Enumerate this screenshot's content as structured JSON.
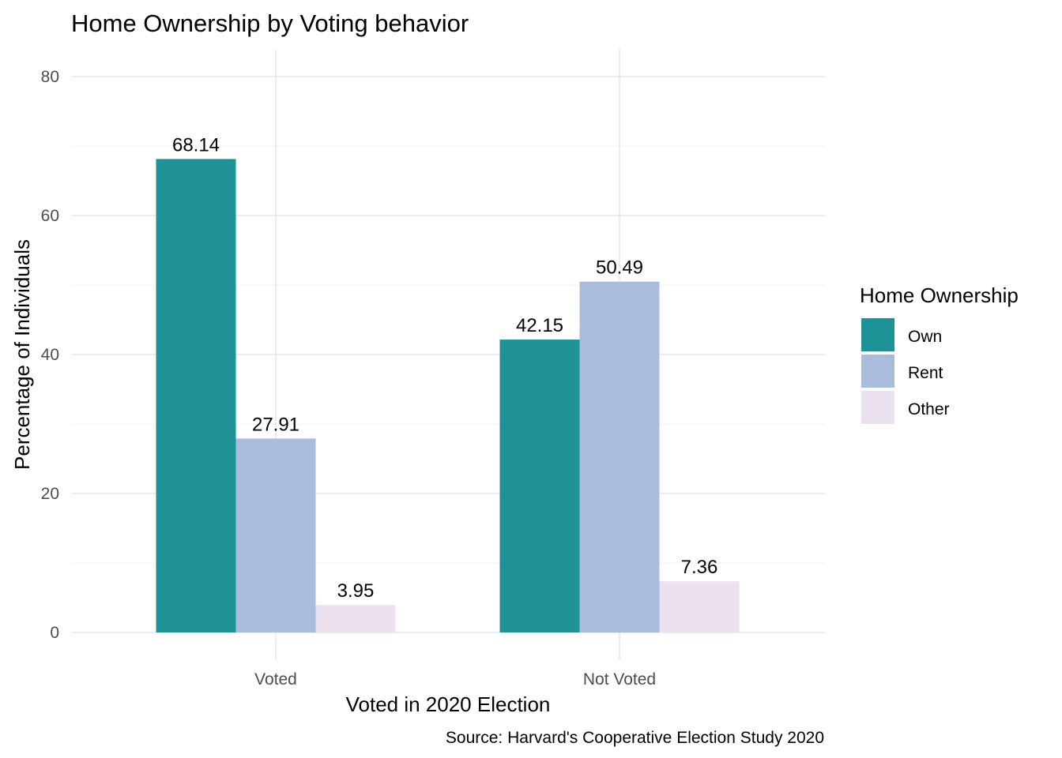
{
  "chart_data": {
    "type": "bar",
    "title": "Home Ownership by Voting behavior",
    "xlabel": "Voted in 2020 Election",
    "ylabel": "Percentage of Individuals",
    "caption": "Source: Harvard's Cooperative Election Study 2020",
    "categories": [
      "Voted",
      "Not Voted"
    ],
    "ylim": [
      0,
      80
    ],
    "yticks": [
      0,
      20,
      40,
      60,
      80
    ],
    "grid": true,
    "legend": {
      "title": "Home Ownership",
      "placement": "right"
    },
    "series": [
      {
        "name": "Own",
        "color": "#1f9298",
        "values": [
          68.14,
          42.15
        ],
        "labels": [
          "68.14",
          "42.15"
        ]
      },
      {
        "name": "Rent",
        "color": "#a9bcdb",
        "values": [
          27.91,
          50.49
        ],
        "labels": [
          "27.91",
          "50.49"
        ]
      },
      {
        "name": "Other",
        "color": "#ebe1ef",
        "values": [
          3.95,
          7.36
        ],
        "labels": [
          "3.95",
          "7.36"
        ]
      }
    ]
  }
}
